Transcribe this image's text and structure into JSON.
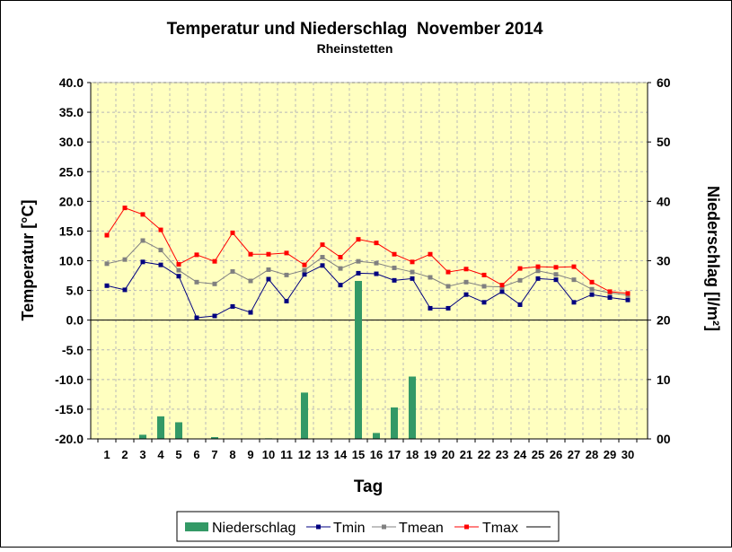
{
  "chart_data": {
    "type": "bar",
    "title": "Temperatur und Niederschlag  November 2014",
    "subtitle": "Rheinstetten",
    "xlabel": "Tag",
    "ylabel": "Temperatur [°C]",
    "y2label": "Niederschlag [l/m²]",
    "ylim": [
      -20,
      40
    ],
    "y2lim": [
      0,
      60
    ],
    "yticks": [
      "40.0",
      "35.0",
      "30.0",
      "25.0",
      "20.0",
      "15.0",
      "10.0",
      "5.0",
      "0.0",
      "-5.0",
      "-10.0",
      "-15.0",
      "-20.0"
    ],
    "y2ticks": [
      "60",
      "50",
      "40",
      "30",
      "20",
      "10",
      "00"
    ],
    "categories": [
      "1",
      "2",
      "3",
      "4",
      "5",
      "6",
      "7",
      "8",
      "9",
      "10",
      "11",
      "12",
      "13",
      "14",
      "15",
      "16",
      "17",
      "18",
      "19",
      "20",
      "21",
      "22",
      "23",
      "24",
      "25",
      "26",
      "27",
      "28",
      "29",
      "30"
    ],
    "grid": true,
    "legend_position": "bottom",
    "colors": {
      "plot_bg": "#ffffc0",
      "grid": "#b8b8b8",
      "niederschlag": "#339966",
      "tmin": "#000080",
      "tmean": "#808080",
      "tmax": "#ff0000"
    },
    "series": [
      {
        "name": "Niederschlag",
        "type": "bar",
        "axis": "y2",
        "values": [
          0,
          0,
          0.7,
          3.8,
          2.8,
          0,
          0.3,
          0,
          0,
          0.1,
          0,
          7.8,
          0,
          0,
          26.6,
          1.0,
          5.3,
          10.5,
          0,
          0,
          0,
          0,
          0,
          0,
          0,
          0,
          0,
          0,
          0,
          0
        ]
      },
      {
        "name": "Tmin",
        "type": "line",
        "axis": "y",
        "values": [
          5.8,
          5.1,
          9.8,
          9.3,
          7.4,
          0.4,
          0.7,
          2.3,
          1.3,
          6.9,
          3.2,
          7.7,
          9.2,
          5.9,
          7.9,
          7.8,
          6.7,
          7.0,
          2.0,
          2.0,
          4.3,
          3.0,
          4.8,
          2.6,
          7.0,
          6.8,
          3.0,
          4.3,
          3.8,
          3.4
        ]
      },
      {
        "name": "Tmean",
        "type": "line",
        "axis": "y",
        "values": [
          9.5,
          10.2,
          13.4,
          11.8,
          8.4,
          6.4,
          6.1,
          8.2,
          6.6,
          8.5,
          7.6,
          8.4,
          10.6,
          8.7,
          9.9,
          9.6,
          8.8,
          8.1,
          7.2,
          5.7,
          6.4,
          5.7,
          5.6,
          6.7,
          8.3,
          7.7,
          6.8,
          5.2,
          4.6,
          4.2
        ]
      },
      {
        "name": "Tmax",
        "type": "line",
        "axis": "y",
        "values": [
          14.3,
          18.9,
          17.8,
          15.2,
          9.4,
          11.0,
          9.9,
          14.7,
          11.1,
          11.1,
          11.3,
          9.3,
          12.7,
          10.6,
          13.6,
          13.0,
          11.1,
          9.8,
          11.1,
          8.1,
          8.6,
          7.6,
          5.9,
          8.7,
          9.0,
          8.9,
          9.0,
          6.4,
          4.8,
          4.5
        ]
      }
    ],
    "legend": [
      "Niederschlag",
      "Tmin",
      "Tmean",
      "Tmax"
    ]
  }
}
